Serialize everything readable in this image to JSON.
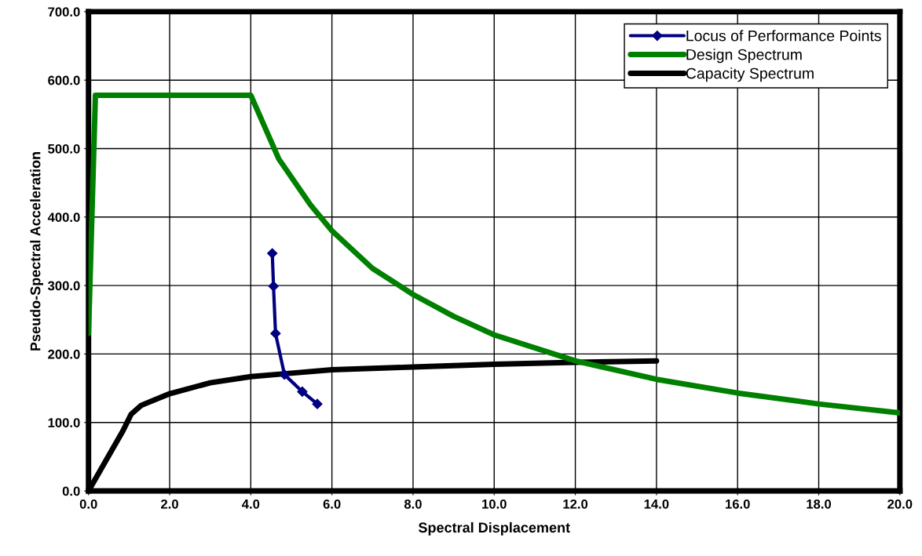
{
  "chart_data": {
    "type": "line",
    "xlabel": "Spectral Displacement",
    "ylabel": "Pseudo-Spectral Acceleration",
    "xlim": [
      0,
      20
    ],
    "ylim": [
      0,
      700
    ],
    "xticks": [
      {
        "value": 0,
        "label": "0.0"
      },
      {
        "value": 2,
        "label": "2.0"
      },
      {
        "value": 4,
        "label": "4.0"
      },
      {
        "value": 6,
        "label": "6.0"
      },
      {
        "value": 8,
        "label": "8.0"
      },
      {
        "value": 10,
        "label": "10.0"
      },
      {
        "value": 12,
        "label": "12.0"
      },
      {
        "value": 14,
        "label": "14.0"
      },
      {
        "value": 16,
        "label": "16.0"
      },
      {
        "value": 18,
        "label": "18.0"
      },
      {
        "value": 20,
        "label": "20.0"
      }
    ],
    "yticks": [
      {
        "value": 0,
        "label": "0.0"
      },
      {
        "value": 100,
        "label": "100.0"
      },
      {
        "value": 200,
        "label": "200.0"
      },
      {
        "value": 300,
        "label": "300.0"
      },
      {
        "value": 400,
        "label": "400.0"
      },
      {
        "value": 500,
        "label": "500.0"
      },
      {
        "value": 600,
        "label": "600.0"
      },
      {
        "value": 700,
        "label": "700.0"
      }
    ],
    "grid": true,
    "legend": "top right",
    "series": [
      {
        "name": "Locus of Performance Points",
        "color": "#000080",
        "marker": "diamond",
        "x": [
          4.53,
          4.56,
          4.61,
          4.83,
          5.27,
          5.64
        ],
        "values": [
          347,
          299,
          230,
          170,
          145,
          127
        ]
      },
      {
        "name": "Design Spectrum",
        "color": "#008000",
        "x": [
          0,
          0.17,
          4.0,
          4.69,
          5.47,
          6,
          7,
          8,
          9,
          10,
          12,
          14,
          16,
          18,
          20
        ],
        "values": [
          230,
          578,
          578,
          485,
          418,
          380,
          325,
          287,
          255,
          228,
          190,
          163,
          143,
          127,
          114
        ]
      },
      {
        "name": "Capacity Spectrum",
        "color": "#000000",
        "x": [
          0,
          0.85,
          1.05,
          1.3,
          2.0,
          3.0,
          4.0,
          5.0,
          6.0,
          8.0,
          10.0,
          12.0,
          14.0
        ],
        "values": [
          0,
          88,
          112,
          125,
          142,
          158,
          167,
          172,
          177,
          181,
          185,
          188,
          190
        ]
      }
    ]
  }
}
